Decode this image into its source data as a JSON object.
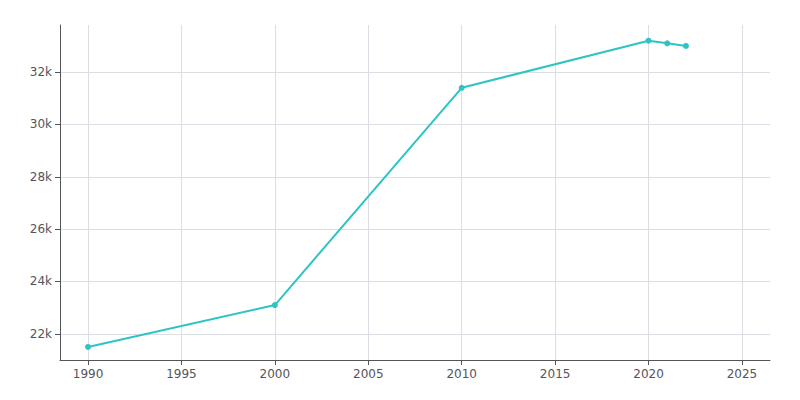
{
  "chart_data": {
    "type": "line",
    "x": [
      1990,
      2000,
      2010,
      2020,
      2021,
      2022
    ],
    "values": [
      21500,
      23100,
      31400,
      33200,
      33100,
      33000
    ],
    "color": "#2EC4C4",
    "marker": "circle",
    "xlim": [
      1988.5,
      2026.5
    ],
    "ylim": [
      21000,
      33800
    ],
    "xticks": [
      1990,
      1995,
      2000,
      2005,
      2010,
      2015,
      2020,
      2025
    ],
    "yticks": [
      {
        "value": 22000,
        "label": "22k"
      },
      {
        "value": 24000,
        "label": "24k"
      },
      {
        "value": 26000,
        "label": "26k"
      },
      {
        "value": 28000,
        "label": "28k"
      },
      {
        "value": 30000,
        "label": "30k"
      },
      {
        "value": 32000,
        "label": "32k"
      }
    ],
    "grid": true
  }
}
